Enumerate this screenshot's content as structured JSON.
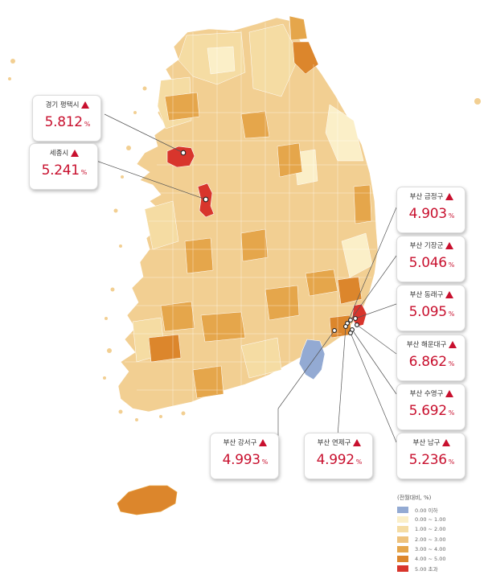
{
  "colors": {
    "below0": "#93aad3",
    "c0_1": "#fbefc8",
    "c1_2": "#f5dca3",
    "c2_3": "#eec27c",
    "c3_4": "#e5a64b",
    "c4_5": "#dc862c",
    "c5plus": "#d8352c",
    "accent": "#c8102e"
  },
  "callouts": [
    {
      "name": "gyeonggi-pyeongtaek",
      "label": "경기 평택시",
      "value": "5.812",
      "unit": "%"
    },
    {
      "name": "sejong",
      "label": "세종시",
      "value": "5.241",
      "unit": "%"
    },
    {
      "name": "busan-geumjeong",
      "label": "부산 금정구",
      "value": "4.903",
      "unit": "%"
    },
    {
      "name": "busan-gijang",
      "label": "부산 기장군",
      "value": "5.046",
      "unit": "%"
    },
    {
      "name": "busan-dongnae",
      "label": "부산 동래구",
      "value": "5.095",
      "unit": "%"
    },
    {
      "name": "busan-haeundae",
      "label": "부산 해운대구",
      "value": "6.862",
      "unit": "%"
    },
    {
      "name": "busan-suyeong",
      "label": "부산 수영구",
      "value": "5.692",
      "unit": "%"
    },
    {
      "name": "busan-gangseo",
      "label": "부산 강서구",
      "value": "4.993",
      "unit": "%"
    },
    {
      "name": "busan-yeonje",
      "label": "부산 연제구",
      "value": "4.992",
      "unit": "%"
    },
    {
      "name": "busan-nam",
      "label": "부산 남구",
      "value": "5.236",
      "unit": "%"
    }
  ],
  "legend": {
    "title": "(전월대비, %)",
    "items": [
      {
        "label": "0.00 이하",
        "color_key": "below0"
      },
      {
        "label": "0.00 ~ 1.00",
        "color_key": "c0_1"
      },
      {
        "label": "1.00 ~ 2.00",
        "color_key": "c1_2"
      },
      {
        "label": "2.00 ~ 3.00",
        "color_key": "c2_3"
      },
      {
        "label": "3.00 ~ 4.00",
        "color_key": "c3_4"
      },
      {
        "label": "4.00 ~ 5.00",
        "color_key": "c4_5"
      },
      {
        "label": "5.00 초과",
        "color_key": "c5plus"
      }
    ]
  }
}
